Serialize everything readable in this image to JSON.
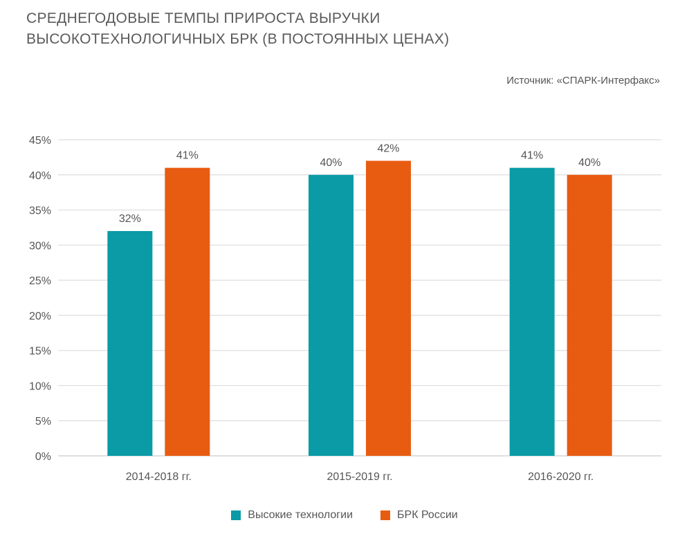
{
  "title": {
    "line1": "СРЕДНЕГОДОВЫЕ ТЕМПЫ ПРИРОСТА ВЫРУЧКИ",
    "line2": "ВЫСОКОТЕХНОЛОГИЧНЫХ БРК (В ПОСТОЯННЫХ ЦЕНАХ)"
  },
  "source": "Источник: «СПАРК-Интерфакс»",
  "colors": {
    "series_1": "#0a9ba6",
    "series_2": "#e85c12",
    "grid": "#dddddd",
    "axis": "#cccccc",
    "text": "#555555"
  },
  "chart_data": {
    "type": "bar",
    "categories": [
      "2014-2018 гг.",
      "2015-2019 гг.",
      "2016-2020 гг."
    ],
    "series": [
      {
        "name": "Высокие технологии",
        "values": [
          32,
          40,
          41
        ],
        "labels": [
          "32%",
          "40%",
          "41%"
        ]
      },
      {
        "name": "БРК России",
        "values": [
          41,
          42,
          40
        ],
        "labels": [
          "41%",
          "42%",
          "40%"
        ]
      }
    ],
    "ylim": [
      0,
      45
    ],
    "yticks": [
      "0%",
      "5%",
      "10%",
      "15%",
      "20%",
      "25%",
      "30%",
      "35%",
      "40%",
      "45%"
    ],
    "ytick_values": [
      0,
      5,
      10,
      15,
      20,
      25,
      30,
      35,
      40,
      45
    ],
    "grid": true,
    "legend_position": "bottom-center"
  }
}
